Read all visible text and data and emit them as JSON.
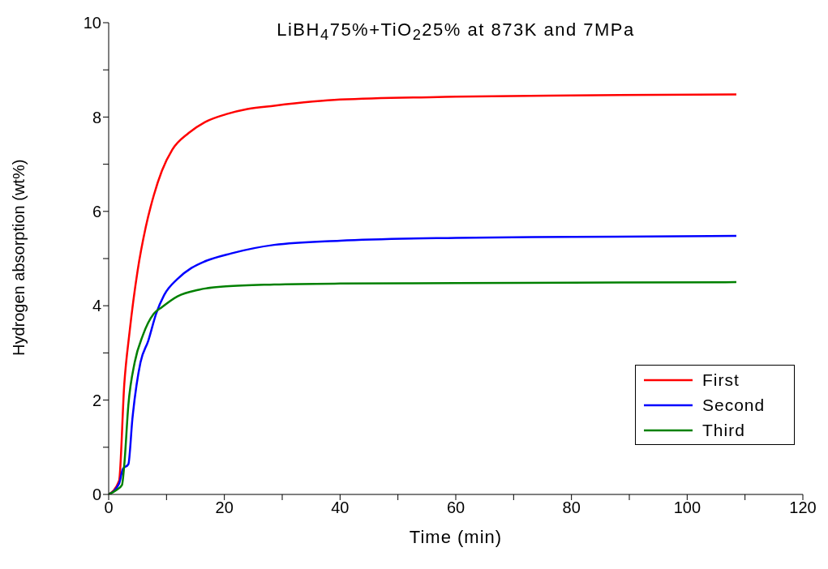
{
  "chart_data": {
    "type": "line",
    "title": "LiBH$_{4}$75%+TiO$_{2}$25% at 873K and 7MPa",
    "xlabel": "Time (min)",
    "ylabel": "Hydrogen absorption (wt%)",
    "xlim": [
      0,
      120
    ],
    "ylim": [
      0,
      10
    ],
    "xticks": [
      0,
      {
        "value": 10,
        "label": null
      },
      20,
      {
        "value": 30,
        "label": null
      },
      40,
      {
        "value": 50,
        "label": null
      },
      60,
      {
        "value": 70,
        "label": null
      },
      80,
      {
        "value": 90,
        "label": null
      },
      100,
      {
        "value": 110,
        "label": null
      },
      120
    ],
    "yticks": [
      0,
      {
        "value": 1,
        "label": null
      },
      2,
      {
        "value": 3,
        "label": null
      },
      4,
      {
        "value": 5,
        "label": null
      },
      6,
      {
        "value": 7,
        "label": null
      },
      8,
      {
        "value": 9,
        "label": null
      },
      10
    ],
    "grid": false,
    "legend": "bottom right",
    "marker": "none",
    "line_style": "solid",
    "series": [
      {
        "name": "First",
        "color": "#ff0000",
        "x": [
          0,
          1.8,
          2.7,
          3.6,
          5.0,
          6.4,
          7.8,
          9.2,
          11.0,
          13.8,
          16.6,
          20.3,
          24,
          28.6,
          40,
          60,
          80,
          108.5
        ],
        "values": [
          0,
          0.29,
          2.34,
          3.43,
          4.74,
          5.66,
          6.34,
          6.86,
          7.31,
          7.66,
          7.89,
          8.06,
          8.17,
          8.24,
          8.37,
          8.43,
          8.46,
          8.48
        ]
      },
      {
        "name": "Second",
        "color": "#0000ff",
        "x": [
          0,
          1.8,
          2.45,
          3.4,
          4.1,
          5.5,
          6.85,
          8.2,
          9.6,
          11.9,
          14.3,
          16.6,
          21.2,
          28.6,
          40,
          60,
          80,
          108.5
        ],
        "values": [
          0,
          0.23,
          0.54,
          0.64,
          1.6,
          2.8,
          3.26,
          3.83,
          4.23,
          4.57,
          4.8,
          4.94,
          5.11,
          5.29,
          5.38,
          5.44,
          5.46,
          5.48
        ]
      },
      {
        "name": "Third",
        "color": "#008000",
        "x": [
          0,
          1.3,
          2.3,
          2.7,
          3.4,
          4.5,
          5.9,
          7.8,
          9.2,
          11.9,
          15.6,
          20.3,
          28.6,
          40,
          60,
          80,
          108.5
        ],
        "values": [
          0,
          0.09,
          0.2,
          0.63,
          1.89,
          2.8,
          3.37,
          3.83,
          3.97,
          4.2,
          4.34,
          4.41,
          4.45,
          4.47,
          4.48,
          4.49,
          4.5
        ]
      }
    ]
  }
}
